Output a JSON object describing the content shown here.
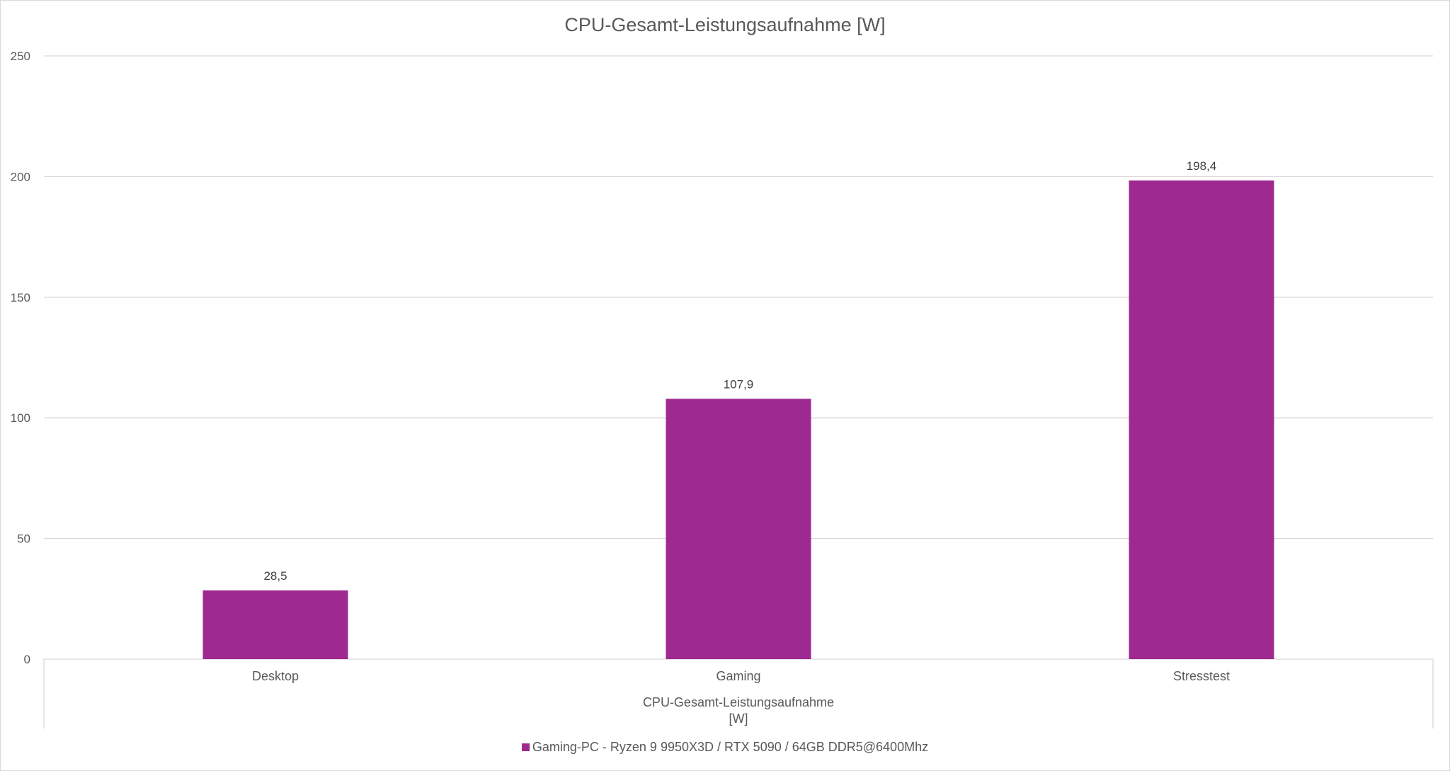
{
  "chart_data": {
    "type": "bar",
    "title": "CPU-Gesamt-Leistungsaufnahme [W]",
    "categories": [
      "Desktop",
      "Gaming",
      "Stresstest"
    ],
    "series": [
      {
        "name": "Gaming-PC - Ryzen 9 9950X3D / RTX 5090 / 64GB DDR5@6400Mhz",
        "values": [
          28.5,
          107.9,
          198.4
        ],
        "data_labels": [
          "28,5",
          "107,9",
          "198,4"
        ],
        "color": "#9E2A91"
      }
    ],
    "xlabel_lines": [
      "CPU-Gesamt-Leistungsaufnahme",
      "[W]"
    ],
    "ylabel": "",
    "ylim": [
      0,
      250
    ],
    "yticks": [
      0,
      50,
      100,
      150,
      200,
      250
    ],
    "ytick_labels": [
      "0",
      "50",
      "100",
      "150",
      "200",
      "250"
    ],
    "grid": true,
    "legend_position": "bottom"
  },
  "colors": {
    "bar": "#9E2A91",
    "grid": "#d9d9d9",
    "text": "#595959",
    "title": "#595959",
    "data_label": "#404040"
  }
}
